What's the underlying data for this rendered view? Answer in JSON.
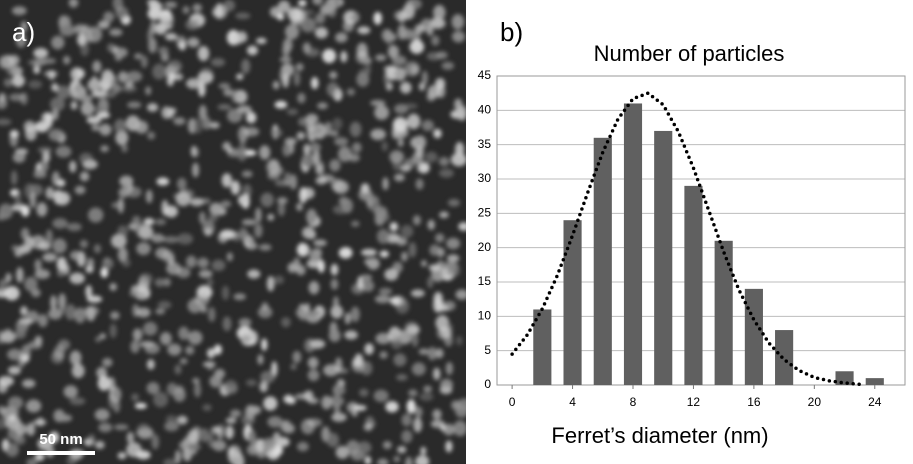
{
  "micrograph": {
    "panel_label": "a)",
    "scale_bar": "50 nm"
  },
  "chart_data": {
    "type": "bar",
    "panel_label": "b)",
    "title": "Number of particles",
    "x_label": "Ferret’s diameter (nm)",
    "x": [
      2,
      4,
      6,
      8,
      10,
      12,
      14,
      16,
      18,
      20,
      22,
      24
    ],
    "values": [
      11,
      24,
      36,
      41,
      37,
      29,
      21,
      14,
      8,
      0,
      2,
      1
    ],
    "color": "#606060",
    "fit": {
      "type": "line",
      "style": "dotted",
      "color": "#000000",
      "x": [
        0,
        1,
        2,
        3,
        4,
        5,
        6,
        7,
        8,
        9,
        10,
        11,
        12,
        13,
        14,
        15,
        16,
        17,
        18,
        19,
        20,
        21,
        22,
        23
      ],
      "values": [
        4.5,
        7.3,
        11.1,
        16.0,
        21.8,
        28.0,
        33.9,
        38.7,
        41.7,
        42.5,
        40.8,
        36.9,
        31.6,
        25.5,
        19.4,
        13.9,
        9.5,
        6.1,
        3.7,
        2.1,
        1.1,
        0.6,
        0.3,
        0.1
      ]
    },
    "xlim": [
      -1,
      26
    ],
    "xticks": [
      0,
      4,
      8,
      12,
      16,
      20,
      24
    ],
    "ylim": [
      0,
      45
    ],
    "yticks": [
      0,
      5,
      10,
      15,
      20,
      25,
      30,
      35,
      40,
      45
    ],
    "grid": true
  }
}
